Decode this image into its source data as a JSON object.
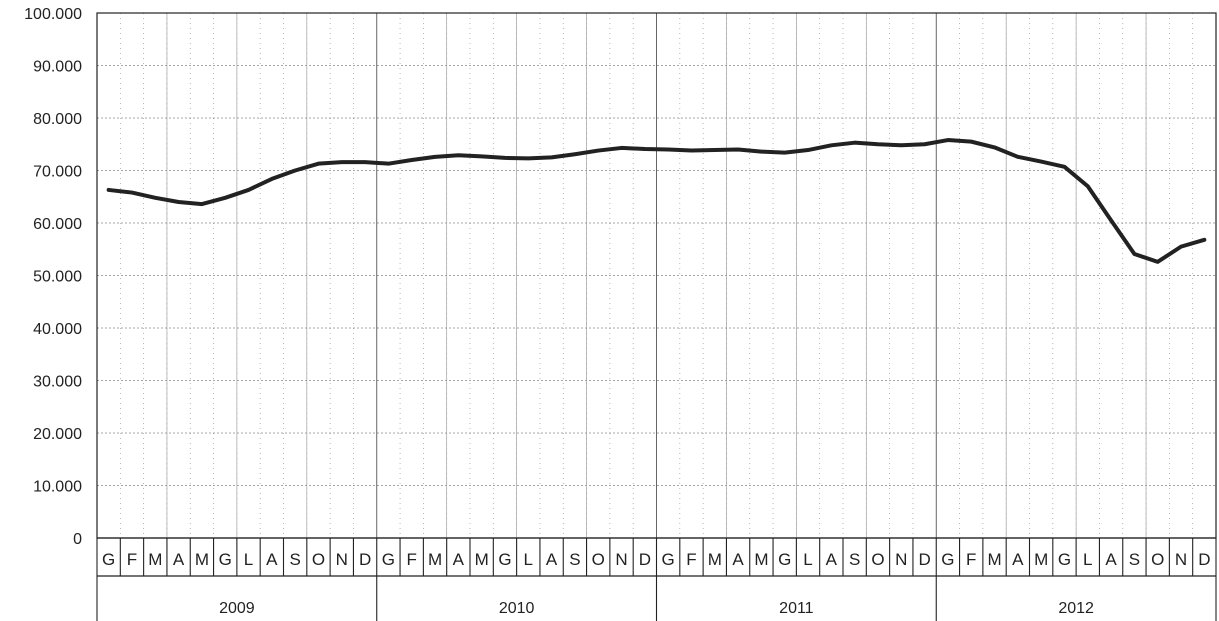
{
  "chart_data": {
    "type": "line",
    "title": "",
    "xlabel": "",
    "ylabel": "",
    "ylim": [
      0,
      100000
    ],
    "grid": true,
    "legend": "none",
    "y_ticks": [
      "0",
      "10.000",
      "20.000",
      "30.000",
      "40.000",
      "50.000",
      "60.000",
      "70.000",
      "80.000",
      "90.000",
      "100.000"
    ],
    "y_tick_values": [
      0,
      10000,
      20000,
      30000,
      40000,
      50000,
      60000,
      70000,
      80000,
      90000,
      100000
    ],
    "month_labels": [
      "G",
      "F",
      "M",
      "A",
      "M",
      "G",
      "L",
      "A",
      "S",
      "O",
      "N",
      "D",
      "G",
      "F",
      "M",
      "A",
      "M",
      "G",
      "L",
      "A",
      "S",
      "O",
      "N",
      "D",
      "G",
      "F",
      "M",
      "A",
      "M",
      "G",
      "L",
      "A",
      "S",
      "O",
      "N",
      "D",
      "G",
      "F",
      "M",
      "A",
      "M",
      "G",
      "L",
      "A",
      "S",
      "O",
      "N",
      "D"
    ],
    "year_labels": [
      "2009",
      "2010",
      "2011",
      "2012"
    ],
    "series": [
      {
        "values": [
          66300,
          65800,
          64800,
          64000,
          63600,
          64800,
          66300,
          68400,
          70000,
          71300,
          71600,
          71600,
          71300,
          72000,
          72600,
          72900,
          72700,
          72400,
          72300,
          72500,
          73100,
          73800,
          74300,
          74100,
          74000,
          73800,
          73900,
          74000,
          73600,
          73400,
          73900,
          74800,
          75300,
          75000,
          74800,
          75000,
          75800,
          75500,
          74400,
          72600,
          71700,
          70700,
          67000,
          60500,
          54100,
          52600,
          55500,
          56800
        ],
        "color": "#222222"
      }
    ]
  }
}
